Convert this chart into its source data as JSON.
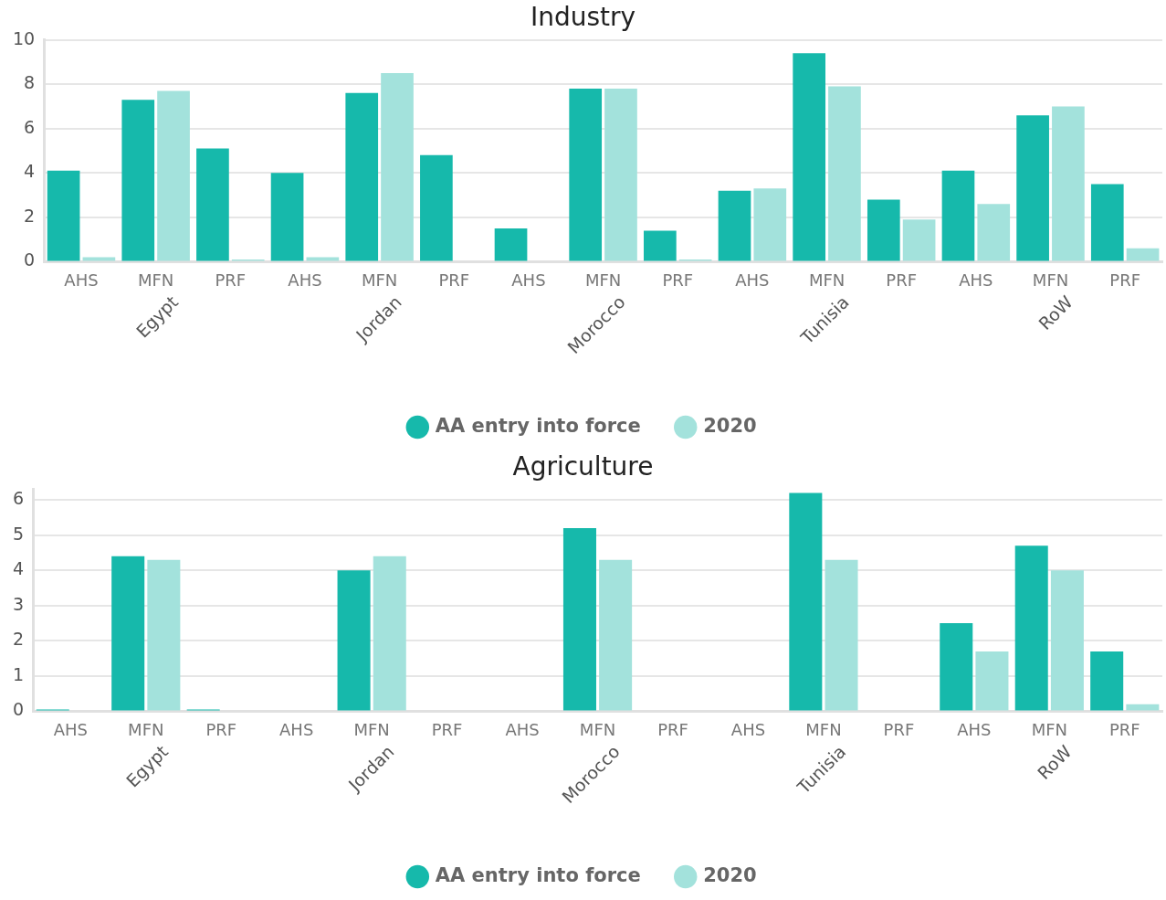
{
  "chart_data": [
    {
      "type": "bar",
      "title": "Industry",
      "categories": [
        "AHS",
        "MFN",
        "PRF",
        "AHS",
        "MFN",
        "PRF",
        "AHS",
        "MFN",
        "PRF",
        "AHS",
        "MFN",
        "PRF",
        "AHS",
        "MFN",
        "PRF"
      ],
      "annotations": [
        "Egypt",
        "Jordan",
        "Morocco",
        "Tunisia",
        "RoW"
      ],
      "series": [
        {
          "name": "AA entry into force",
          "color": "#16b9ab",
          "values": [
            4.1,
            7.3,
            5.1,
            4.0,
            7.6,
            4.8,
            1.5,
            7.8,
            1.4,
            3.2,
            9.4,
            2.8,
            4.1,
            6.6,
            3.5
          ]
        },
        {
          "name": "2020",
          "color": "#a3e2dc",
          "values": [
            0.2,
            7.7,
            0.1,
            0.2,
            8.5,
            0,
            0,
            7.8,
            0.1,
            3.3,
            7.9,
            1.9,
            2.6,
            7.0,
            0.6
          ]
        }
      ],
      "ylim": [
        0,
        10
      ],
      "yticks": [
        0,
        2,
        4,
        6,
        8,
        10
      ],
      "grid": "y",
      "legend": "bottom"
    },
    {
      "type": "bar",
      "title": "Agriculture",
      "categories": [
        "AHS",
        "MFN",
        "PRF",
        "AHS",
        "MFN",
        "PRF",
        "AHS",
        "MFN",
        "PRF",
        "AHS",
        "MFN",
        "PRF",
        "AHS",
        "MFN",
        "PRF"
      ],
      "annotations": [
        "Egypt",
        "Jordan",
        "Morocco",
        "Tunisia",
        "RoW"
      ],
      "series": [
        {
          "name": "AA entry into force",
          "color": "#16b9ab",
          "values": [
            0.05,
            4.4,
            0.05,
            0,
            4.0,
            0,
            0,
            5.2,
            0,
            0,
            6.2,
            0,
            2.5,
            4.7,
            1.7
          ]
        },
        {
          "name": "2020",
          "color": "#a3e2dc",
          "values": [
            0,
            4.3,
            0,
            0,
            4.4,
            0,
            0,
            4.3,
            0,
            0,
            4.3,
            0,
            1.7,
            4.0,
            0.2
          ]
        }
      ],
      "ylim": [
        0,
        6.3
      ],
      "yticks": [
        0,
        1,
        2,
        3,
        4,
        5,
        6
      ],
      "grid": "y",
      "legend": "bottom"
    }
  ]
}
